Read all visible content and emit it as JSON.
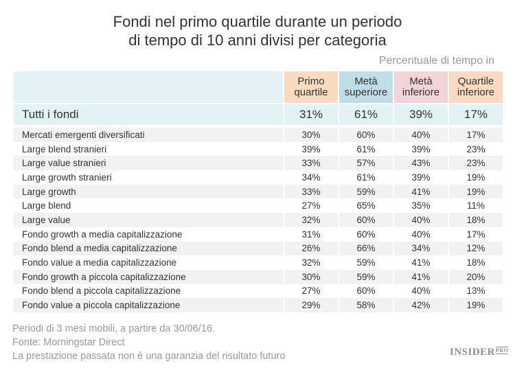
{
  "chart_data": {
    "type": "table",
    "title_line1": "Fondi nel primo quartile durante un periodo",
    "title_line2": "di tempo di 10 anni divisi per categoria",
    "unit_label": "Percentuale di tempo in",
    "columns": [
      {
        "line1": "Primo",
        "line2": "quartile",
        "color": "#f9dcbf"
      },
      {
        "line1": "Metà",
        "line2": "superiore",
        "color": "#bedde6"
      },
      {
        "line1": "Metà",
        "line2": "inferiore",
        "color": "#f2d3d7"
      },
      {
        "line1": "Quartile",
        "line2": "inferiore",
        "color": "#f9dcbf"
      }
    ],
    "total_row": {
      "label": "Tutti i fondi",
      "values": [
        "31%",
        "61%",
        "39%",
        "17%"
      ]
    },
    "rows": [
      {
        "label": "Mercati emergenti diversificati",
        "values": [
          "30%",
          "60%",
          "40%",
          "17%"
        ]
      },
      {
        "label": "Large blend stranieri",
        "values": [
          "39%",
          "61%",
          "39%",
          "23%"
        ]
      },
      {
        "label": "Large value stranieri",
        "values": [
          "33%",
          "57%",
          "43%",
          "23%"
        ]
      },
      {
        "label": "Large growth stranieri",
        "values": [
          "34%",
          "61%",
          "39%",
          "19%"
        ]
      },
      {
        "label": "Large growth",
        "values": [
          "33%",
          "59%",
          "41%",
          "19%"
        ]
      },
      {
        "label": "Large blend",
        "values": [
          "27%",
          "65%",
          "35%",
          "11%"
        ]
      },
      {
        "label": "Large value",
        "values": [
          "32%",
          "60%",
          "40%",
          "18%"
        ]
      },
      {
        "label": "Fondo growth a media capitalizzazione",
        "values": [
          "31%",
          "60%",
          "40%",
          "17%"
        ]
      },
      {
        "label": "Fondo blend a media capitalizzazione",
        "values": [
          "26%",
          "66%",
          "34%",
          "12%"
        ]
      },
      {
        "label": "Fondo value a media capitalizzazione",
        "values": [
          "32%",
          "59%",
          "41%",
          "18%"
        ]
      },
      {
        "label": "Fondo growth a piccola capitalizzazione",
        "values": [
          "30%",
          "59%",
          "41%",
          "20%"
        ]
      },
      {
        "label": "Fondo blend a piccola capitalizzazione",
        "values": [
          "27%",
          "60%",
          "40%",
          "13%"
        ]
      },
      {
        "label": "Fondo value a piccola capitalizzazione",
        "values": [
          "29%",
          "58%",
          "42%",
          "19%"
        ]
      }
    ]
  },
  "footer": {
    "line1": "Periodi di 3 mesi mobili, a partire da 30/06/16.",
    "line2": "Fonte: Morningstar Direct",
    "line3": "La prestazione passata non è una garanzia del risultato futuro"
  },
  "logo": {
    "text": "INSIDER",
    "suffix": "PRO"
  }
}
